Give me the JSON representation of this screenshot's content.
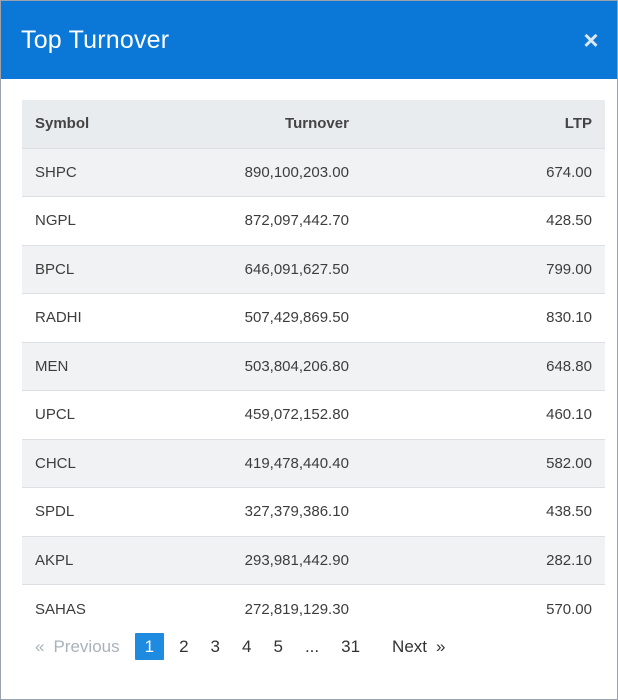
{
  "modal": {
    "title": "Top Turnover",
    "close_symbol": "×"
  },
  "table": {
    "headers": {
      "symbol": "Symbol",
      "turnover": "Turnover",
      "ltp": "LTP"
    },
    "rows": [
      {
        "symbol": "SHPC",
        "turnover": "890,100,203.00",
        "ltp": "674.00"
      },
      {
        "symbol": "NGPL",
        "turnover": "872,097,442.70",
        "ltp": "428.50"
      },
      {
        "symbol": "BPCL",
        "turnover": "646,091,627.50",
        "ltp": "799.00"
      },
      {
        "symbol": "RADHI",
        "turnover": "507,429,869.50",
        "ltp": "830.10"
      },
      {
        "symbol": "MEN",
        "turnover": "503,804,206.80",
        "ltp": "648.80"
      },
      {
        "symbol": "UPCL",
        "turnover": "459,072,152.80",
        "ltp": "460.10"
      },
      {
        "symbol": "CHCL",
        "turnover": "419,478,440.40",
        "ltp": "582.00"
      },
      {
        "symbol": "SPDL",
        "turnover": "327,379,386.10",
        "ltp": "438.50"
      },
      {
        "symbol": "AKPL",
        "turnover": "293,981,442.90",
        "ltp": "282.10"
      },
      {
        "symbol": "SAHAS",
        "turnover": "272,819,129.30",
        "ltp": "570.00"
      }
    ]
  },
  "pagination": {
    "prev_chevron": "«",
    "prev_label": "Previous",
    "pages": [
      "1",
      "2",
      "3",
      "4",
      "5",
      "...",
      "31"
    ],
    "active_page": "1",
    "next_label": "Next",
    "next_chevron": "»"
  },
  "colors": {
    "header_bg": "#0b78d8",
    "active_page_bg": "#1f8be0"
  }
}
